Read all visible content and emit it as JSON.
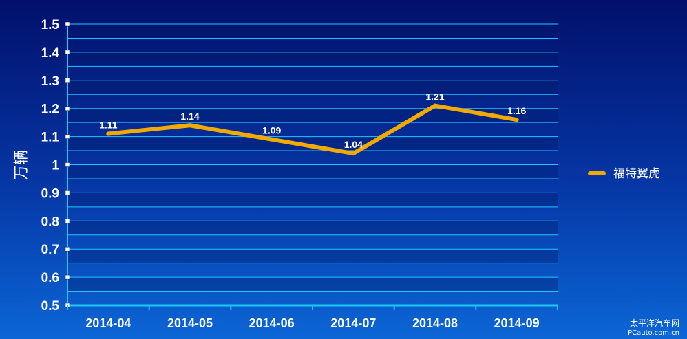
{
  "chart_data": {
    "type": "line",
    "categories": [
      "2014-04",
      "2014-05",
      "2014-06",
      "2014-07",
      "2014-08",
      "2014-09"
    ],
    "series": [
      {
        "name": "福特翼虎",
        "values": [
          1.11,
          1.14,
          1.09,
          1.04,
          1.21,
          1.16
        ],
        "color": "#f2a900"
      }
    ],
    "data_labels": [
      "1.11",
      "1.14",
      "1.09",
      "1.04",
      "1.21",
      "1.16"
    ],
    "ylabel": "万辆",
    "ylim": [
      0.5,
      1.5
    ],
    "yticks": [
      "0.5",
      "0.6",
      "0.7",
      "0.8",
      "0.9",
      "1",
      "1.1",
      "1.2",
      "1.3",
      "1.4",
      "1.5"
    ],
    "grid": true,
    "legend_position": "right"
  },
  "watermark": {
    "line1": "太平洋汽车网",
    "line2": "PCauto.com.cn"
  }
}
